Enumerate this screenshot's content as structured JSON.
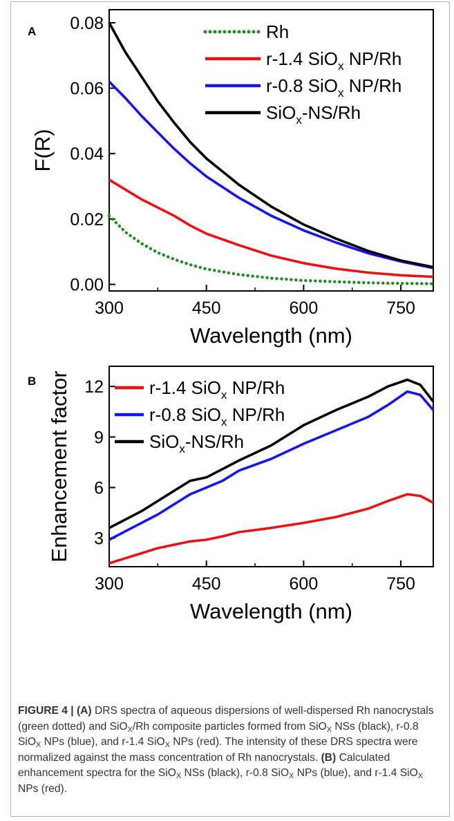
{
  "colors": {
    "rh": "#1f8c1f",
    "r14": "#ee1111",
    "r08": "#1515ee",
    "ns": "#000000"
  },
  "chart_data": [
    {
      "type": "line",
      "panel_label": "A",
      "xlabel": "Wavelength (nm)",
      "ylabel": "F(R)",
      "xlim": [
        300,
        800
      ],
      "ylim": [
        -0.002,
        0.084
      ],
      "xticks": [
        300,
        450,
        600,
        750
      ],
      "yticks": [
        0.0,
        0.02,
        0.04,
        0.06,
        0.08
      ],
      "ytick_labels": [
        "0.00",
        "0.02",
        "0.04",
        "0.06",
        "0.08"
      ],
      "grid": false,
      "legend": "top-right",
      "series": [
        {
          "name": "Rh",
          "legend_main": "Rh",
          "legend_sub": "",
          "legend_tail": "",
          "style": "dotted",
          "color": "#1f8c1f",
          "x": [
            300,
            325,
            350,
            375,
            400,
            425,
            450,
            500,
            550,
            600,
            650,
            700,
            750,
            800
          ],
          "y": [
            0.021,
            0.016,
            0.0125,
            0.0097,
            0.0077,
            0.006,
            0.0047,
            0.003,
            0.0019,
            0.0012,
            0.0008,
            0.0005,
            0.0003,
            0.0002
          ]
        },
        {
          "name": "r-1.4 SiOx NP/Rh",
          "legend_main": "r-1.4 SiO",
          "legend_sub": "x",
          "legend_tail": " NP/Rh",
          "style": "solid",
          "color": "#ee1111",
          "x": [
            300,
            325,
            350,
            375,
            400,
            425,
            450,
            500,
            550,
            600,
            650,
            700,
            750,
            800
          ],
          "y": [
            0.032,
            0.029,
            0.026,
            0.0235,
            0.021,
            0.018,
            0.0155,
            0.012,
            0.0088,
            0.0065,
            0.0048,
            0.0036,
            0.0028,
            0.0023
          ]
        },
        {
          "name": "r-0.8 SiOx NP/Rh",
          "legend_main": "r-0.8 SiO",
          "legend_sub": "x",
          "legend_tail": " NP/Rh",
          "style": "solid",
          "color": "#1515ee",
          "x": [
            300,
            325,
            350,
            375,
            400,
            425,
            450,
            500,
            550,
            600,
            650,
            700,
            750,
            800
          ],
          "y": [
            0.062,
            0.057,
            0.0515,
            0.0465,
            0.0415,
            0.037,
            0.033,
            0.0265,
            0.021,
            0.0165,
            0.0128,
            0.0095,
            0.007,
            0.005
          ]
        },
        {
          "name": "SiOx-NS/Rh",
          "legend_main": "SiO",
          "legend_sub": "x",
          "legend_tail": "-NS/Rh",
          "style": "solid",
          "color": "#000000",
          "x": [
            300,
            325,
            350,
            375,
            400,
            425,
            450,
            500,
            550,
            600,
            650,
            700,
            750,
            800
          ],
          "y": [
            0.08,
            0.071,
            0.0635,
            0.056,
            0.0495,
            0.0435,
            0.0385,
            0.0305,
            0.0238,
            0.0183,
            0.014,
            0.0102,
            0.0073,
            0.0053
          ]
        }
      ]
    },
    {
      "type": "line",
      "panel_label": "B",
      "xlabel": "Wavelength (nm)",
      "ylabel": "Enhancement factor",
      "xlim": [
        300,
        800
      ],
      "ylim": [
        1.3,
        13.2
      ],
      "xticks": [
        300,
        450,
        600,
        750
      ],
      "yticks": [
        3,
        6,
        9,
        12
      ],
      "ytick_labels": [
        "3",
        "6",
        "9",
        "12"
      ],
      "grid": false,
      "legend": "top-left",
      "series": [
        {
          "name": "r-1.4 SiOx NP/Rh",
          "legend_main": "r-1.4 SiO",
          "legend_sub": "x",
          "legend_tail": " NP/Rh",
          "style": "solid",
          "color": "#ee1111",
          "x": [
            300,
            325,
            350,
            375,
            400,
            425,
            450,
            475,
            500,
            550,
            600,
            650,
            700,
            730,
            760,
            780,
            800
          ],
          "y": [
            1.5,
            1.8,
            2.1,
            2.4,
            2.6,
            2.8,
            2.9,
            3.1,
            3.35,
            3.6,
            3.9,
            4.25,
            4.75,
            5.2,
            5.6,
            5.5,
            5.1
          ]
        },
        {
          "name": "r-0.8 SiOx NP/Rh",
          "legend_main": "r-0.8 SiO",
          "legend_sub": "x",
          "legend_tail": " NP/Rh",
          "style": "solid",
          "color": "#1515ee",
          "x": [
            300,
            325,
            350,
            375,
            400,
            425,
            450,
            475,
            500,
            550,
            600,
            650,
            700,
            730,
            760,
            780,
            800
          ],
          "y": [
            2.9,
            3.4,
            3.9,
            4.4,
            5.0,
            5.6,
            6.0,
            6.4,
            7.0,
            7.7,
            8.6,
            9.4,
            10.2,
            10.9,
            11.7,
            11.5,
            10.6
          ]
        },
        {
          "name": "SiOx-NS/Rh",
          "legend_main": "SiO",
          "legend_sub": "x",
          "legend_tail": "-NS/Rh",
          "style": "solid",
          "color": "#000000",
          "x": [
            300,
            325,
            350,
            375,
            400,
            425,
            450,
            475,
            500,
            550,
            600,
            650,
            700,
            730,
            760,
            780,
            800
          ],
          "y": [
            3.6,
            4.1,
            4.6,
            5.2,
            5.8,
            6.4,
            6.6,
            7.1,
            7.6,
            8.5,
            9.7,
            10.6,
            11.4,
            12.0,
            12.4,
            12.1,
            11.1
          ]
        }
      ]
    }
  ],
  "caption": {
    "fig": "FIGURE 4 |",
    "a_label": "(A)",
    "b_label": "(B)",
    "sub_x": "X",
    "t1": " DRS spectra of aqueous dispersions of well-dispersed Rh nanocrystals (green dotted) and SiO",
    "t2": "/Rh composite particles formed from SiO",
    "t3": " NSs (black), r-0.8 SiO",
    "t4": " NPs (blue), and r-1.4 SiO",
    "t5": " NPs (red). The intensity of these DRS spectra were normalized against the mass concentration of Rh nanocrystals. ",
    "t6": " Calculated enhancement spectra for the SiO",
    "t7": " NSs (black), r-0.8 SiO",
    "t8": " NPs (blue), and r-1.4 SiO",
    "t9": " NPs (red)."
  }
}
